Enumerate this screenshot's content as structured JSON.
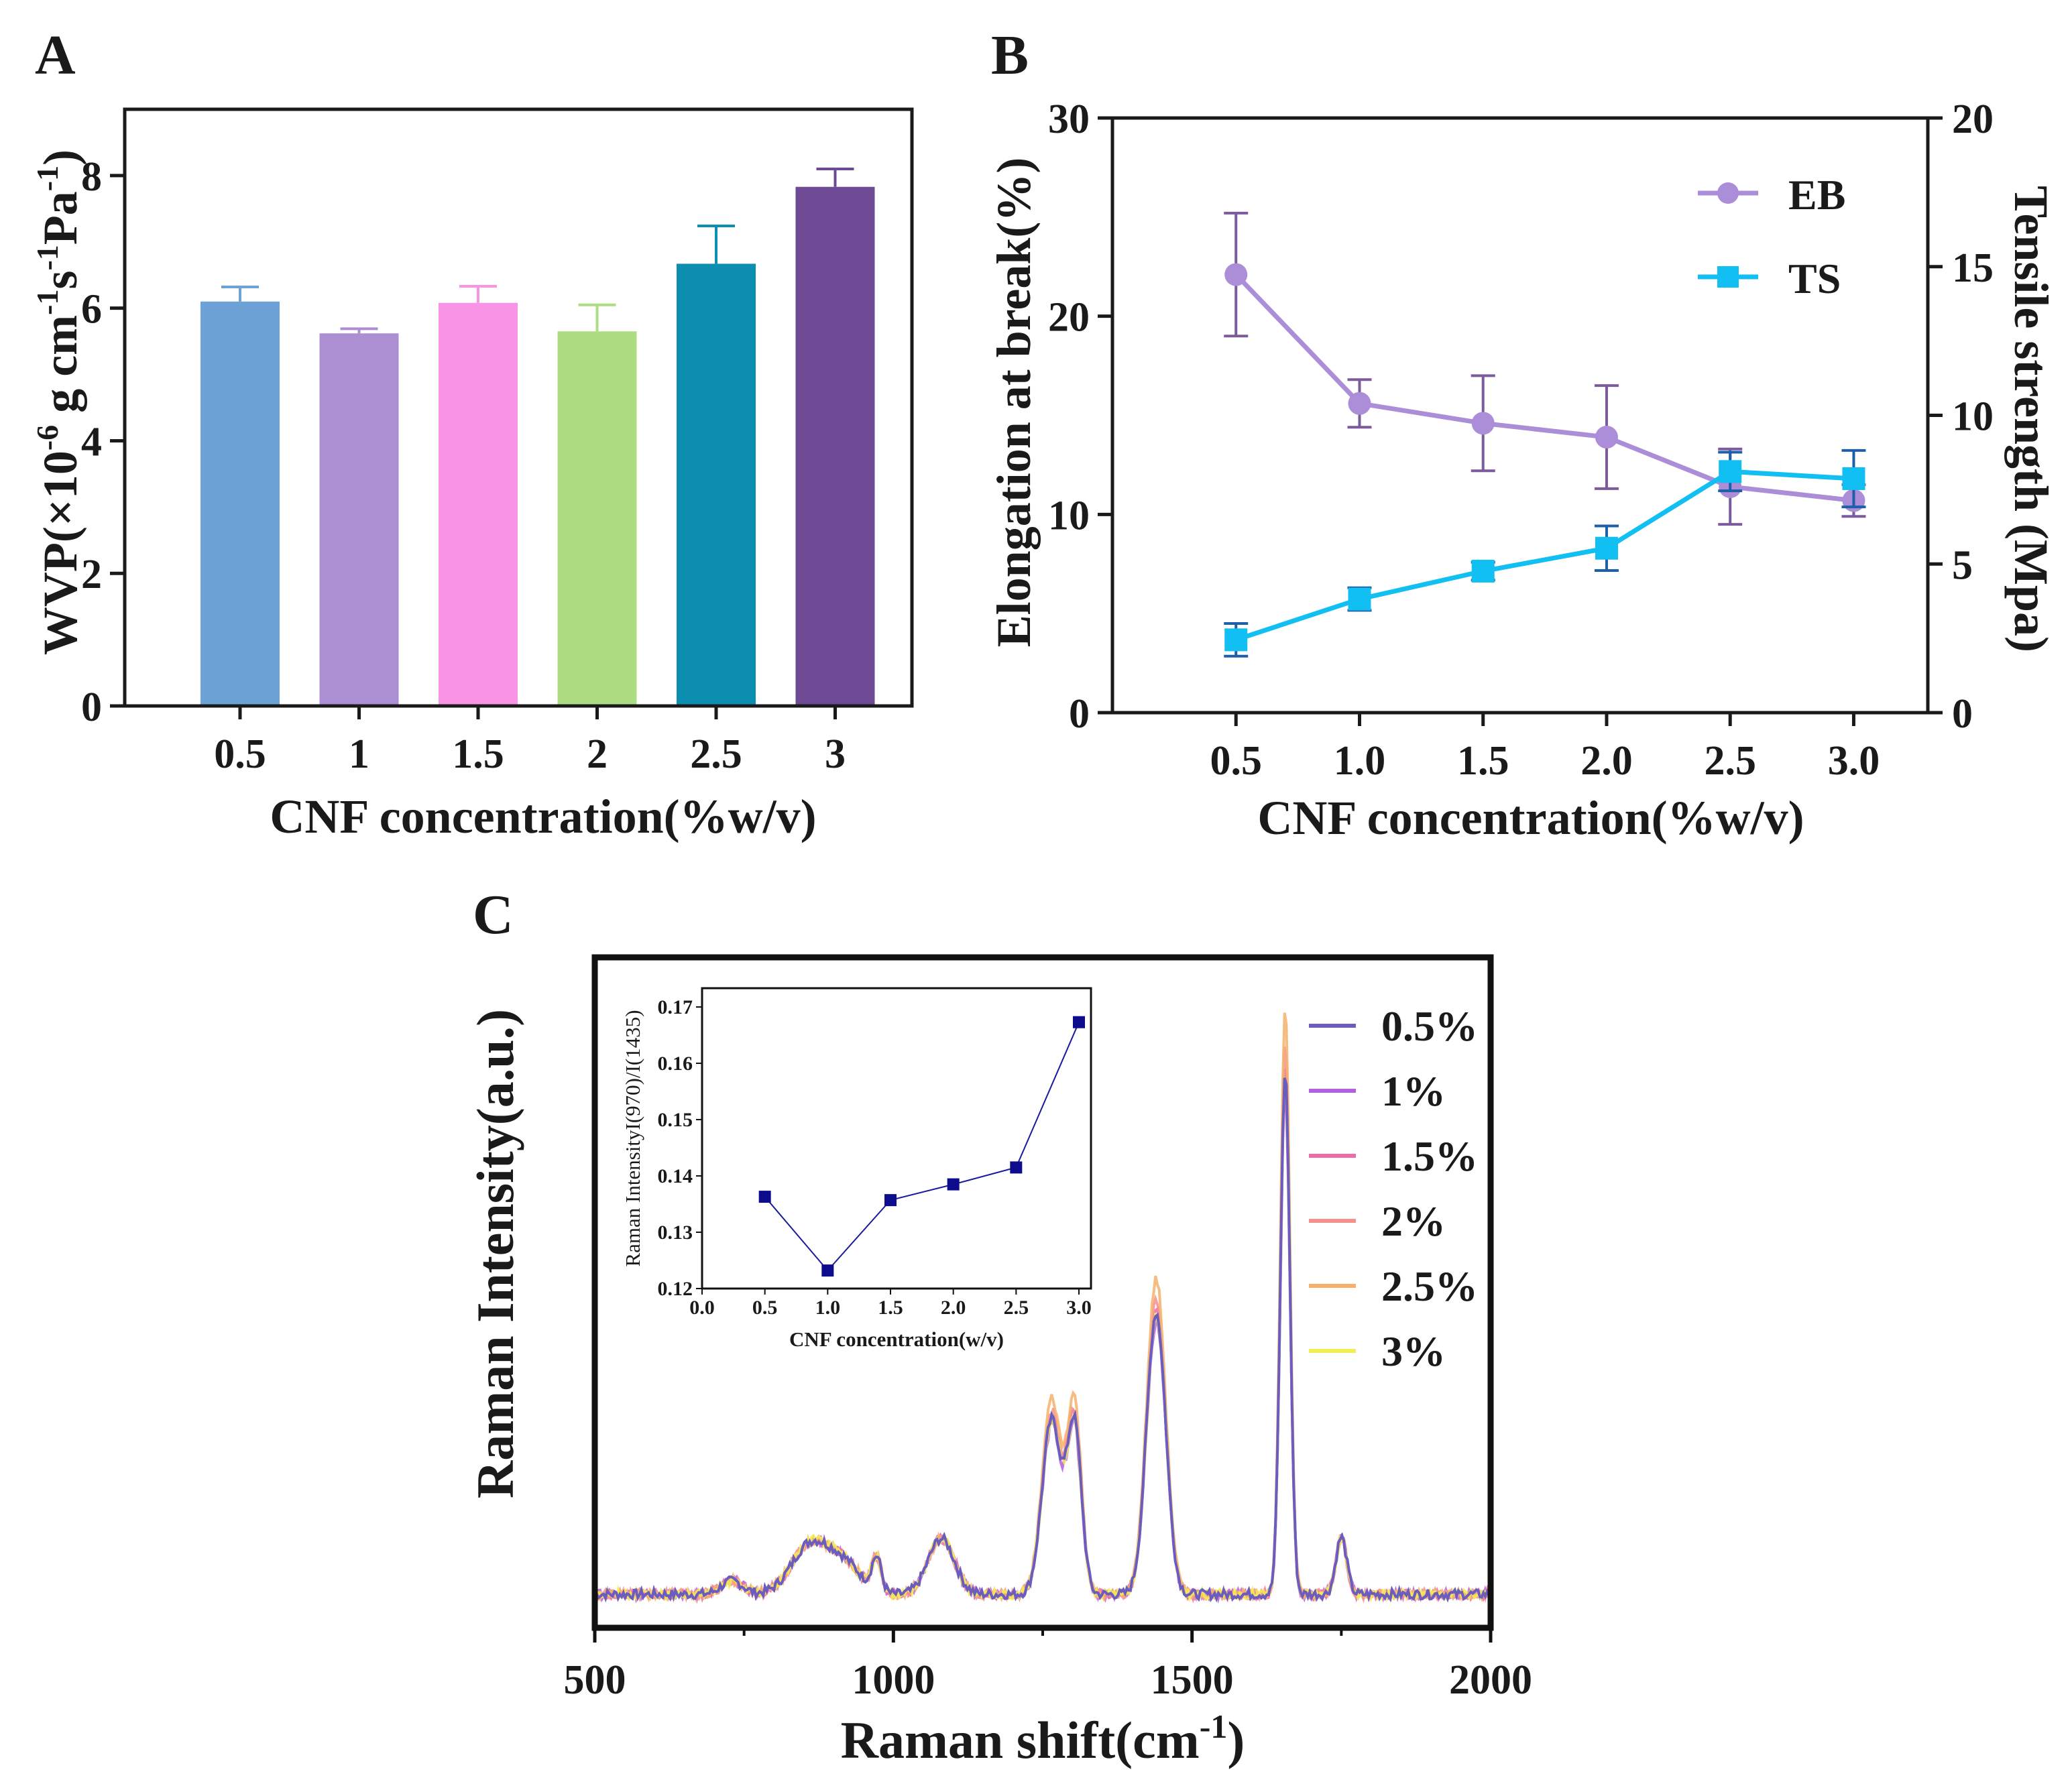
{
  "figure": {
    "panel_a_label": "A",
    "panel_b_label": "B",
    "panel_c_label": "C"
  },
  "chart_data": [
    {
      "panel": "A",
      "type": "bar",
      "categories": [
        "0.5",
        "1",
        "1.5",
        "2",
        "2.5",
        "3"
      ],
      "values": [
        6.1,
        5.62,
        6.08,
        5.65,
        6.67,
        7.83
      ],
      "errors": [
        0.22,
        0.07,
        0.25,
        0.4,
        0.57,
        0.27
      ],
      "colors": [
        "#6ca2d6",
        "#ac8fd2",
        "#f893e6",
        "#addd83",
        "#0c8eb1",
        "#6e4a94"
      ],
      "xlabel": "CNF concentration(%w/v)",
      "ylabel_main": "WVP(×10",
      "ylabel_exp1": "-6",
      "ylabel_mid1": " g cm",
      "ylabel_exp2": "-1",
      "ylabel_mid2": "s",
      "ylabel_exp3": "-1",
      "ylabel_mid3": "Pa",
      "ylabel_exp4": "-1",
      "ylabel_end": ")",
      "ylim": [
        0,
        9
      ],
      "yticks": [
        "0",
        "2",
        "4",
        "6",
        "8"
      ],
      "ytick_values": [
        0,
        2,
        4,
        6,
        8
      ]
    },
    {
      "panel": "B",
      "type": "line",
      "x": [
        0.5,
        1.0,
        1.5,
        2.0,
        2.5,
        3.0
      ],
      "xticks": [
        "0.5",
        "1.0",
        "1.5",
        "2.0",
        "2.5",
        "3.0"
      ],
      "xlim": [
        0.0,
        3.3
      ],
      "xlabel": "CNF concentration(%w/v)",
      "ylabel_left": "Elongation at break(%)",
      "ylabel_right": "Tensile strength (Mpa)",
      "ylim_left": [
        0,
        30
      ],
      "ylim_right": [
        0,
        20
      ],
      "yticks_left": [
        "0",
        "10",
        "20",
        "30"
      ],
      "yticks_left_values": [
        0,
        10,
        20,
        30
      ],
      "yticks_right": [
        "0",
        "5",
        "10",
        "15",
        "20"
      ],
      "yticks_right_values": [
        0,
        5,
        10,
        15,
        20
      ],
      "series": [
        {
          "name": "EB",
          "axis": "left",
          "marker": "circle",
          "color": "#ab8dd8",
          "values": [
            22.1,
            15.6,
            14.6,
            13.9,
            11.4,
            10.7
          ],
          "errors": [
            3.1,
            1.2,
            2.4,
            2.6,
            1.9,
            0.8
          ]
        },
        {
          "name": "TS",
          "axis": "right",
          "marker": "square",
          "color": "#12bff2",
          "values": [
            2.45,
            3.82,
            4.76,
            5.53,
            8.11,
            7.87
          ],
          "errors": [
            0.55,
            0.38,
            0.3,
            0.75,
            0.65,
            0.95
          ]
        }
      ]
    },
    {
      "panel": "C",
      "type": "line",
      "xlabel_main": "Raman shift(cm",
      "xlabel_exp": "-1",
      "xlabel_end": ")",
      "ylabel": "Raman Intensity(a.u.)",
      "xlim": [
        500,
        2000
      ],
      "xticks": [
        "500",
        "1000",
        "1500",
        "2000"
      ],
      "xtick_values": [
        500,
        1000,
        1500,
        2000
      ],
      "ylim": [
        0,
        1.0
      ],
      "series": [
        {
          "name": "0.5%",
          "color": "#6a5dbf",
          "scale": 1.0
        },
        {
          "name": "1%",
          "color": "#b45ee0",
          "scale": 0.97
        },
        {
          "name": "1.5%",
          "color": "#ee6aa9",
          "scale": 1.02
        },
        {
          "name": "2%",
          "color": "#f2918e",
          "scale": 1.05
        },
        {
          "name": "2.5%",
          "color": "#f6b06c",
          "scale": 1.12
        },
        {
          "name": "3%",
          "color": "#f2ef55",
          "scale": 0.99
        }
      ],
      "baseline": 0.05,
      "peaks": [
        {
          "center": 730,
          "height": 0.02,
          "width": 18
        },
        {
          "center": 862,
          "height": 0.075,
          "width": 32
        },
        {
          "center": 920,
          "height": 0.04,
          "width": 28
        },
        {
          "center": 972,
          "height": 0.05,
          "width": 8
        },
        {
          "center": 1080,
          "height": 0.083,
          "width": 22
        },
        {
          "center": 1265,
          "height": 0.26,
          "width": 16
        },
        {
          "center": 1303,
          "height": 0.25,
          "width": 12
        },
        {
          "center": 1440,
          "height": 0.42,
          "width": 16
        },
        {
          "center": 1656,
          "height": 0.78,
          "width": 8
        },
        {
          "center": 1750,
          "height": 0.085,
          "width": 9
        }
      ]
    },
    {
      "panel": "C-inset",
      "type": "line",
      "x": [
        0.5,
        1.0,
        1.5,
        2.0,
        2.5,
        3.0
      ],
      "values": [
        0.1363,
        0.1232,
        0.1357,
        0.1385,
        0.1415,
        0.1673
      ],
      "xlim": [
        0.0,
        3.0
      ],
      "ylim": [
        0.12,
        0.17
      ],
      "xticks": [
        "0.0",
        "0.5",
        "1.0",
        "1.5",
        "2.0",
        "2.5",
        "3.0"
      ],
      "xtick_values": [
        0.0,
        0.5,
        1.0,
        1.5,
        2.0,
        2.5,
        3.0
      ],
      "yticks": [
        "0.12",
        "0.13",
        "0.14",
        "0.15",
        "0.16",
        "0.17"
      ],
      "ytick_values": [
        0.12,
        0.13,
        0.14,
        0.15,
        0.16,
        0.17
      ],
      "xlabel": "CNF concentration(w/v)",
      "ylabel": "Raman IntensityI(970)/I(1435)",
      "color": "#1a1aa0",
      "marker_color": "#0c0c8c"
    }
  ]
}
